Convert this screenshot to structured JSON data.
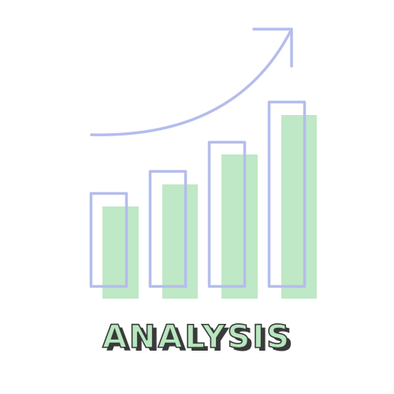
{
  "caption": "ANALYSIS",
  "colors": {
    "bar_fill": "#bfe8c6",
    "bar_outline": "#b4bdec",
    "arrow": "#b4bdec",
    "caption_fill": "#b7e7bf",
    "caption_shadow": "#3a3a3a"
  },
  "icons": {
    "growth_arrow": "trend-up-arrow-icon"
  },
  "bars": [
    {
      "level": 1
    },
    {
      "level": 2
    },
    {
      "level": 3
    },
    {
      "level": 4
    }
  ]
}
